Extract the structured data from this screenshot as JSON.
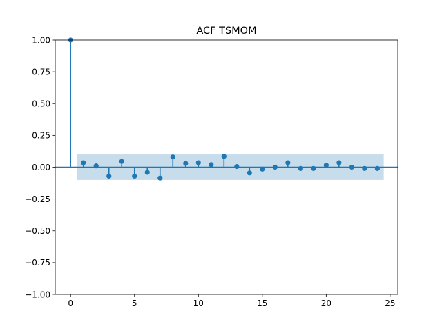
{
  "chart_data": {
    "type": "stem",
    "title": "ACF TSMOM",
    "xlabel": "",
    "ylabel": "",
    "xlim": [
      -1.2,
      25.6
    ],
    "ylim": [
      -1.0,
      1.0
    ],
    "x_ticks": [
      0,
      5,
      10,
      15,
      20,
      25
    ],
    "y_ticks": [
      -1.0,
      -0.75,
      -0.5,
      -0.25,
      0.0,
      0.25,
      0.5,
      0.75,
      1.0
    ],
    "x_tick_labels": [
      "0",
      "5",
      "10",
      "15",
      "20",
      "25"
    ],
    "y_tick_labels": [
      "−1.00",
      "−0.75",
      "−0.50",
      "−0.25",
      "0.00",
      "0.25",
      "0.50",
      "0.75",
      "1.00"
    ],
    "lags": [
      0,
      1,
      2,
      3,
      4,
      5,
      6,
      7,
      8,
      9,
      10,
      11,
      12,
      13,
      14,
      15,
      16,
      17,
      18,
      19,
      20,
      21,
      22,
      23,
      24
    ],
    "values": [
      1.0,
      0.035,
      0.01,
      -0.07,
      0.045,
      -0.07,
      -0.04,
      -0.085,
      0.08,
      0.03,
      0.035,
      0.02,
      0.085,
      0.005,
      -0.045,
      -0.015,
      0.0,
      0.035,
      -0.01,
      -0.01,
      0.015,
      0.035,
      0.0,
      -0.01,
      -0.01
    ],
    "confidence_band": {
      "x_start": 0.5,
      "x_end": 24.5,
      "lower": -0.1,
      "upper": 0.1
    },
    "colors": {
      "stem": "#1f77b4",
      "band": "#1f77b4",
      "band_opacity": 0.25,
      "zero_line": "#1f77b4"
    },
    "grid": false,
    "legend": "none"
  }
}
